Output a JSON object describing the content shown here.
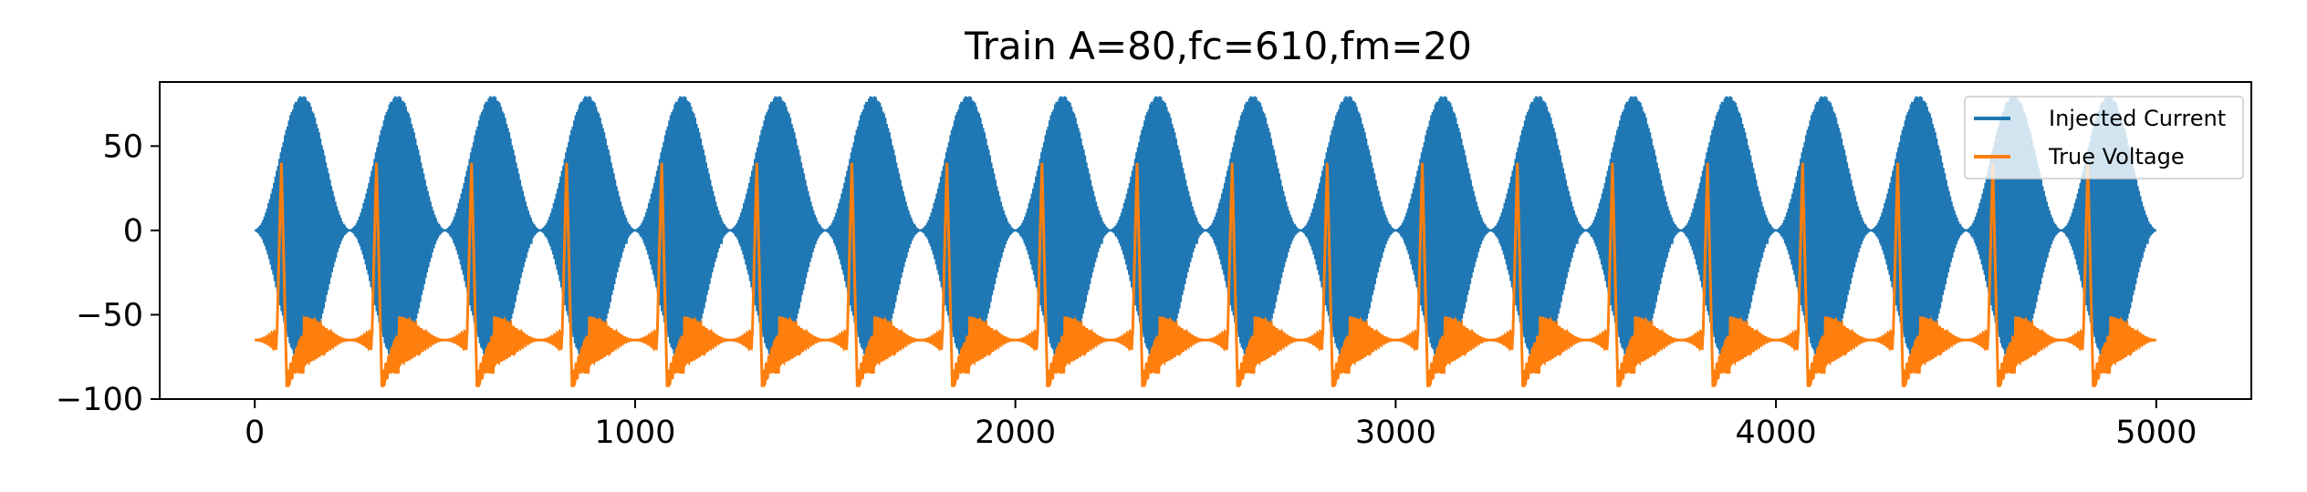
{
  "chart_data": {
    "type": "line",
    "title": "Train A=80,fc=610,fm=20",
    "xlabel": "",
    "ylabel": "",
    "xlim": [
      -250,
      5250
    ],
    "ylim": [
      -100,
      88
    ],
    "x_ticks": [
      0,
      1000,
      2000,
      3000,
      4000,
      5000
    ],
    "x_tick_labels": [
      "0",
      "1000",
      "2000",
      "3000",
      "4000",
      "5000"
    ],
    "y_ticks": [
      -100,
      -50,
      0,
      50
    ],
    "y_tick_labels": [
      "−100",
      "−50",
      "0",
      "50"
    ],
    "grid": false,
    "legend_position": "top-right",
    "series": [
      {
        "name": "Injected Current",
        "color": "#1f77b4",
        "x_range": [
          0,
          5000
        ],
        "amplitude": 80,
        "carrier_freq": 610,
        "modulation_freq": 20,
        "envelope_periods": 20,
        "envelope_peak_value": 80,
        "envelope_trough_value": 0
      },
      {
        "name": "True Voltage",
        "color": "#ff7f0e",
        "x_range": [
          0,
          5000
        ],
        "resting_value": -65,
        "spike_peak_value": 40,
        "spike_undershoot_value": -90,
        "spike_times": [
          70,
          320,
          570,
          820,
          1070,
          1320,
          1570,
          1820,
          2070,
          2320,
          2570,
          2820,
          3070,
          3320,
          3570,
          3820,
          4070,
          4320,
          4570,
          4820
        ],
        "oscillation_min": -92,
        "oscillation_max": -50
      }
    ]
  }
}
